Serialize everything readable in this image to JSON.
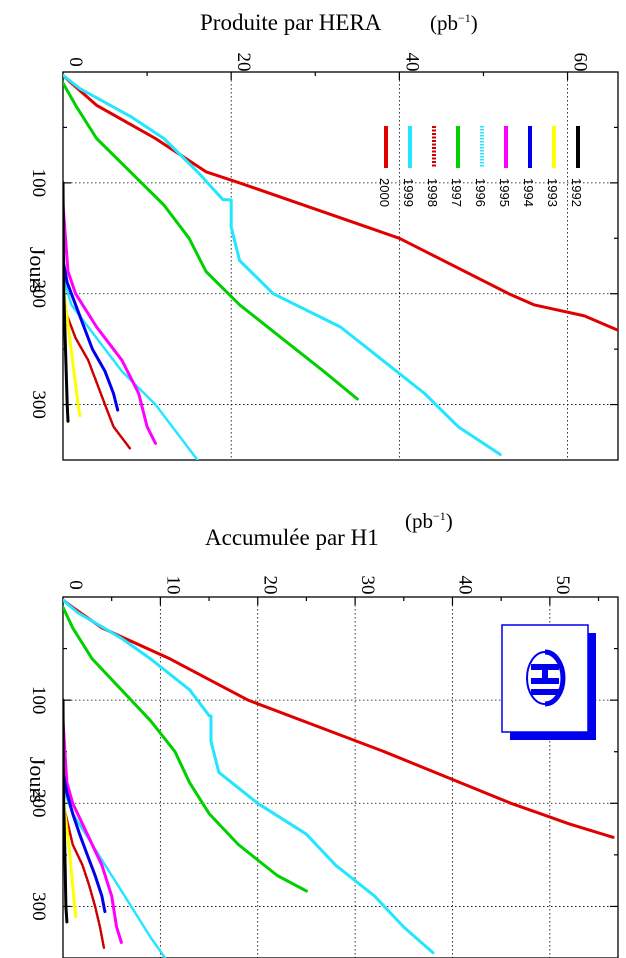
{
  "chart_data": [
    {
      "type": "line",
      "title": "Produite par HERA",
      "unit": "(pb",
      "unit_sup": "−1",
      "unit_close": ")",
      "xlabel": "Jours",
      "xlim": [
        0,
        350
      ],
      "ylim": [
        0,
        66
      ],
      "xticks": [
        100,
        200,
        300
      ],
      "yticks": [
        0,
        20,
        40,
        60
      ],
      "grid": true,
      "legend_position": "top-right",
      "series": [
        {
          "name": "2000",
          "color": "#e00000",
          "dash": "",
          "width": 3,
          "x": [
            3,
            10,
            30,
            60,
            90,
            100,
            150,
            200,
            210,
            220,
            233
          ],
          "y": [
            0,
            1,
            4,
            11,
            17,
            21,
            40,
            53,
            56,
            62,
            66
          ]
        },
        {
          "name": "1999",
          "color": "#22e6ff",
          "dash": "",
          "width": 3,
          "x": [
            3,
            15,
            40,
            60,
            90,
            115,
            115.5,
            140,
            170,
            200,
            230,
            260,
            290,
            320,
            345
          ],
          "y": [
            0,
            2,
            8,
            12,
            16,
            19,
            20,
            20,
            21,
            25,
            33,
            38,
            43,
            47,
            52
          ]
        },
        {
          "name": "1998",
          "color": "#cc0000",
          "dash": "2 1.5",
          "width": 2.5,
          "x": [
            200,
            220,
            240,
            260,
            280,
            300,
            320,
            340
          ],
          "y": [
            0,
            0.5,
            1.5,
            3,
            4,
            5,
            6,
            8
          ]
        },
        {
          "name": "1997",
          "color": "#00d000",
          "dash": "",
          "width": 3,
          "x": [
            10,
            30,
            60,
            90,
            120,
            150,
            180,
            210,
            240,
            270,
            295
          ],
          "y": [
            0,
            1.5,
            4,
            8,
            12,
            15,
            17,
            21,
            26,
            31,
            35
          ]
        },
        {
          "name": "1996",
          "color": "#22e6ff",
          "dash": "1.5 1.5",
          "width": 2.5,
          "x": [
            185,
            210,
            240,
            270,
            300,
            330,
            350
          ],
          "y": [
            0,
            1,
            4,
            7,
            11,
            14,
            16
          ]
        },
        {
          "name": "1995",
          "color": "#ff00ff",
          "dash": "",
          "width": 3,
          "x": [
            120,
            150,
            180,
            200,
            230,
            260,
            290,
            320,
            335
          ],
          "y": [
            0,
            0.3,
            0.6,
            1.5,
            4,
            7,
            9,
            10,
            11
          ]
        },
        {
          "name": "1994",
          "color": "#0000ee",
          "dash": "",
          "width": 3,
          "x": [
            170,
            190,
            210,
            230,
            250,
            270,
            290,
            305
          ],
          "y": [
            0,
            0.5,
            1.5,
            2.5,
            3.5,
            5,
            6,
            6.5
          ]
        },
        {
          "name": "1993",
          "color": "#ffff00",
          "dash": "",
          "width": 3,
          "x": [
            190,
            210,
            240,
            270,
            300,
            310
          ],
          "y": [
            0,
            0.3,
            0.8,
            1.3,
            1.8,
            2
          ]
        },
        {
          "name": "1992",
          "color": "#000000",
          "dash": "",
          "width": 3,
          "x": [
            100,
            150,
            200,
            250,
            300,
            315
          ],
          "y": [
            0,
            0.05,
            0.1,
            0.3,
            0.5,
            0.6
          ]
        }
      ]
    },
    {
      "type": "line",
      "title": "Accumulée par H1",
      "unit": "(pb",
      "unit_sup": "−1",
      "unit_close": ")",
      "xlabel": "Jours",
      "xlim": [
        0,
        350
      ],
      "ylim": [
        0,
        57
      ],
      "xticks": [
        100,
        200,
        300
      ],
      "yticks": [
        0,
        10,
        20,
        30,
        40,
        50
      ],
      "grid": true,
      "logo": "H1",
      "series": [
        {
          "name": "2000",
          "color": "#e00000",
          "dash": "",
          "width": 3,
          "x": [
            3,
            10,
            30,
            60,
            90,
            100,
            150,
            200,
            210,
            220,
            233
          ],
          "y": [
            0,
            1,
            4,
            11,
            17,
            19,
            33,
            46,
            49,
            52,
            56.5
          ]
        },
        {
          "name": "1999",
          "color": "#22e6ff",
          "dash": "",
          "width": 3,
          "x": [
            3,
            15,
            40,
            60,
            90,
            115,
            115.5,
            140,
            170,
            200,
            230,
            260,
            290,
            320,
            345
          ],
          "y": [
            0,
            1.5,
            6,
            9,
            13,
            15,
            15.2,
            15.2,
            16,
            20,
            25,
            28,
            32,
            35,
            38
          ]
        },
        {
          "name": "1998",
          "color": "#cc0000",
          "dash": "2 1.5",
          "width": 2.5,
          "x": [
            200,
            220,
            240,
            260,
            280,
            300,
            320,
            340
          ],
          "y": [
            0,
            0.5,
            1,
            2,
            2.7,
            3.3,
            3.8,
            4.2
          ]
        },
        {
          "name": "1997",
          "color": "#00d000",
          "dash": "",
          "width": 3,
          "x": [
            10,
            30,
            60,
            90,
            120,
            150,
            180,
            210,
            240,
            270,
            285
          ],
          "y": [
            0,
            1,
            3,
            6,
            9,
            11.5,
            13,
            15,
            18,
            22,
            25
          ]
        },
        {
          "name": "1996",
          "color": "#22e6ff",
          "dash": "1.5 1.5",
          "width": 2.5,
          "x": [
            185,
            210,
            240,
            270,
            300,
            330,
            350
          ],
          "y": [
            0,
            1,
            3,
            5,
            7,
            9,
            10.5
          ]
        },
        {
          "name": "1995",
          "color": "#ff00ff",
          "dash": "",
          "width": 3,
          "x": [
            120,
            150,
            180,
            200,
            230,
            260,
            290,
            320,
            335
          ],
          "y": [
            0,
            0.2,
            0.4,
            1,
            2.5,
            4,
            5,
            5.5,
            6
          ]
        },
        {
          "name": "1994",
          "color": "#0000ee",
          "dash": "",
          "width": 3,
          "x": [
            170,
            190,
            210,
            230,
            250,
            270,
            290,
            305
          ],
          "y": [
            0,
            0.4,
            1,
            1.7,
            2.5,
            3.3,
            4,
            4.3
          ]
        },
        {
          "name": "1993",
          "color": "#ffff00",
          "dash": "",
          "width": 3,
          "x": [
            190,
            210,
            240,
            270,
            300,
            310
          ],
          "y": [
            0,
            0.2,
            0.6,
            0.9,
            1.2,
            1.3
          ]
        },
        {
          "name": "1992",
          "color": "#000000",
          "dash": "",
          "width": 3,
          "x": [
            100,
            150,
            200,
            250,
            300,
            315
          ],
          "y": [
            0,
            0.03,
            0.07,
            0.2,
            0.3,
            0.4
          ]
        }
      ]
    }
  ]
}
